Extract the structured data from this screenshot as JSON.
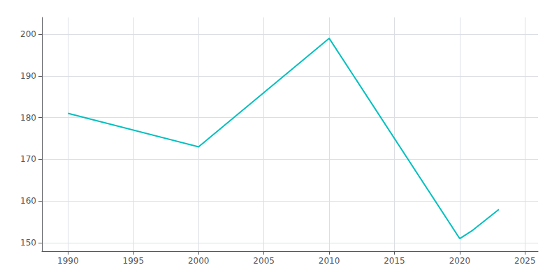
{
  "chart_data": {
    "type": "line",
    "x": [
      1990,
      2000,
      2010,
      2020,
      2021,
      2023
    ],
    "values": [
      181,
      173,
      199,
      151,
      153,
      158
    ],
    "color": "#00BFBF",
    "xlim": [
      1988,
      2026
    ],
    "ylim": [
      148,
      204
    ],
    "xticks": [
      1990,
      1995,
      2000,
      2005,
      2010,
      2015,
      2020,
      2025
    ],
    "yticks": [
      150,
      160,
      170,
      180,
      190,
      200
    ],
    "grid": true
  }
}
